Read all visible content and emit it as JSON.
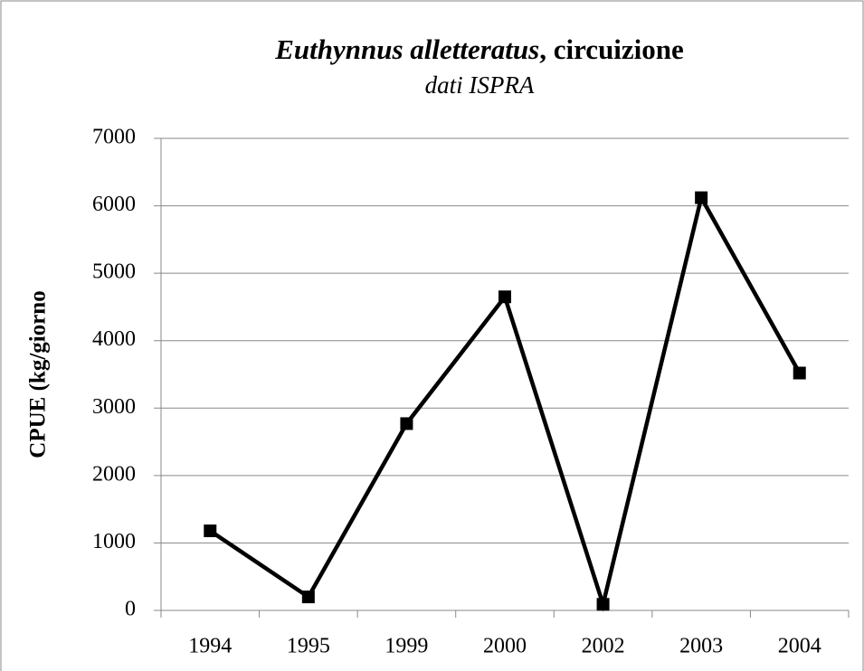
{
  "chart_data": {
    "type": "line",
    "title": [
      "Euthynnus alletteratus",
      ", circuizione"
    ],
    "subtitle": "dati ISPRA",
    "y_label": "CPUE (kg/giorno",
    "categories": [
      "1994",
      "1995",
      "1999",
      "2000",
      "2002",
      "2003",
      "2004"
    ],
    "values": [
      1180,
      200,
      2770,
      4650,
      90,
      6120,
      3520
    ],
    "color": "#000000",
    "ylim": [
      0,
      7000
    ],
    "yticks": [
      0,
      1000,
      2000,
      3000,
      4000,
      5000,
      6000,
      7000
    ],
    "grid": true
  }
}
